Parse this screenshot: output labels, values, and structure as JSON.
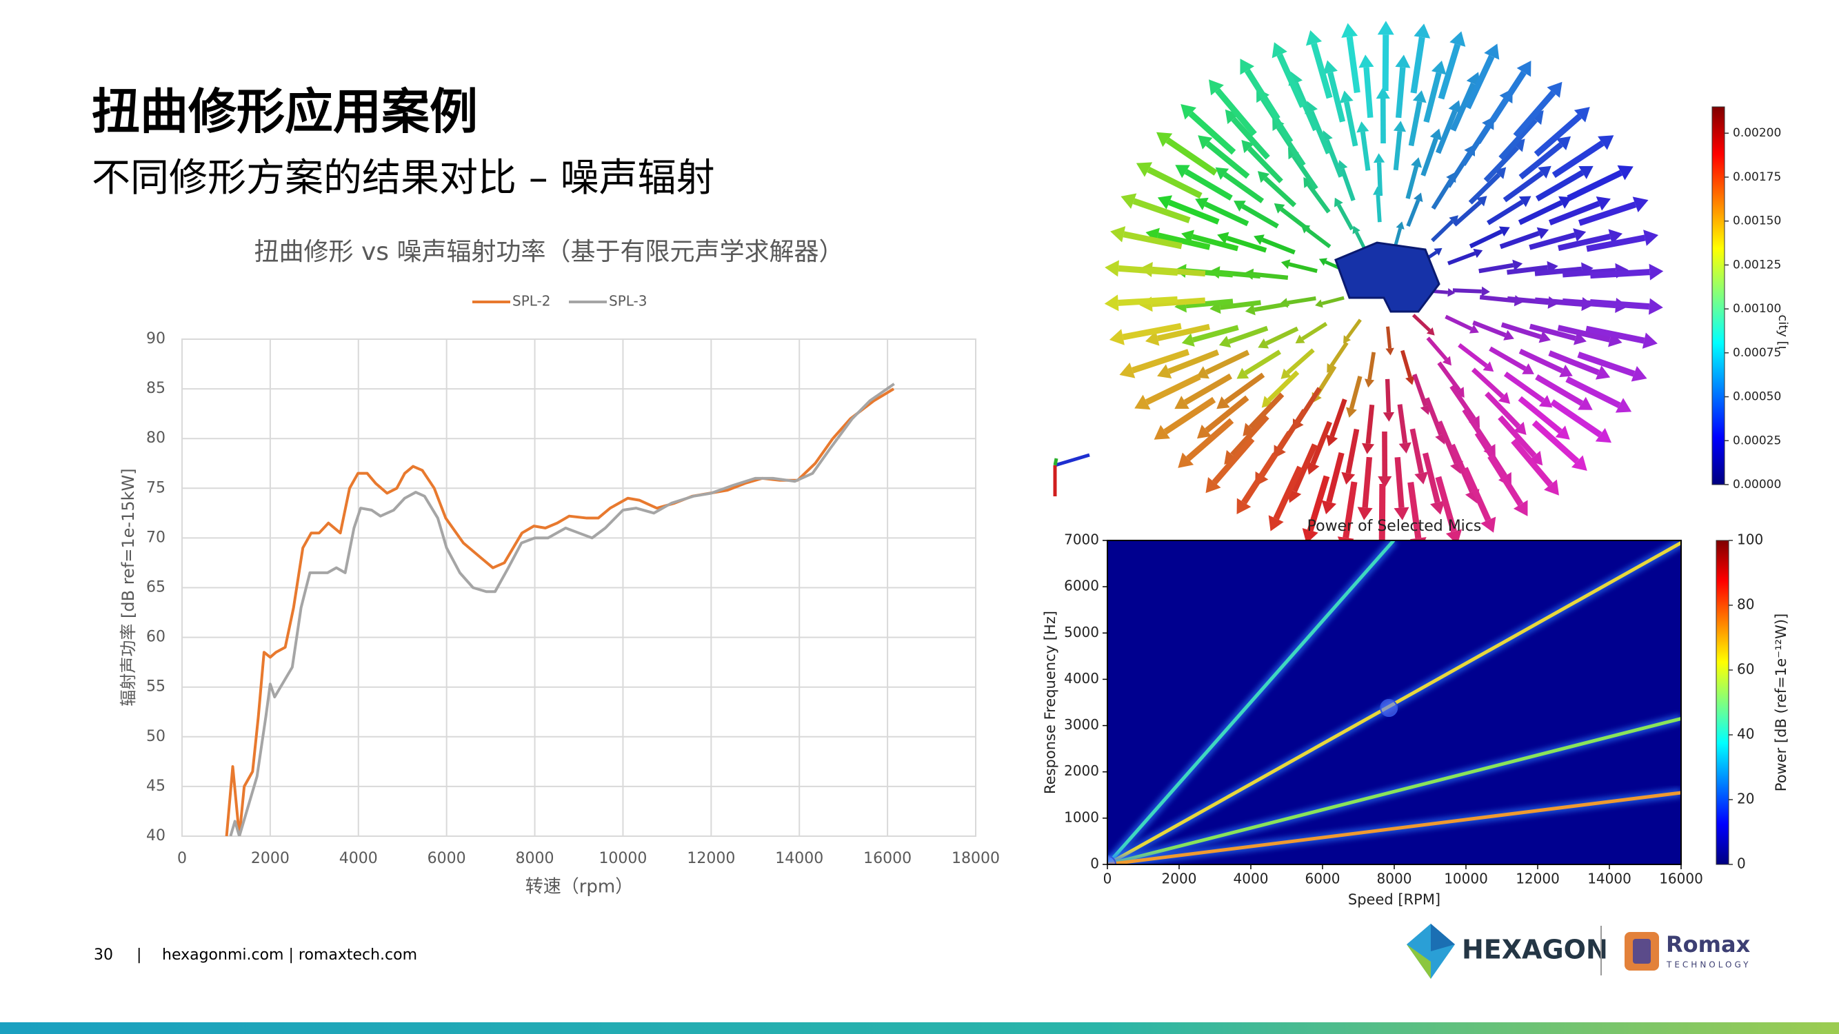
{
  "title": "扭曲修形应用案例",
  "subtitle": "不同修形方案的结果对比 – 噪声辐射",
  "footer": {
    "page": "30",
    "sep": "|",
    "links": "hexagonmi.com | romaxtech.com"
  },
  "logos": {
    "hexagon": "HEXAGON",
    "romax": "Romax",
    "romax_sub": "TECHNOLOGY"
  },
  "chart_data": [
    {
      "type": "line",
      "title": "扭曲修形 vs 噪声辐射功率（基于有限元声学求解器）",
      "xlabel": "转速（rpm）",
      "ylabel": "辐射声功率 [dB ref=1e-15kW]",
      "xlim": [
        0,
        18000
      ],
      "xticks": [
        0,
        2000,
        4000,
        6000,
        8000,
        10000,
        12000,
        14000,
        16000,
        18000
      ],
      "ylim": [
        40,
        90
      ],
      "yticks": [
        40,
        45,
        50,
        55,
        60,
        65,
        70,
        75,
        80,
        85,
        90
      ],
      "grid": true,
      "legend": "top",
      "series": [
        {
          "name": "SPL-2",
          "color": "#e8792e",
          "x": [
            1010,
            1150,
            1300,
            1410,
            1600,
            1730,
            1860,
            2000,
            2130,
            2340,
            2530,
            2740,
            2930,
            3110,
            3320,
            3590,
            3800,
            3990,
            4200,
            4390,
            4650,
            4870,
            5050,
            5240,
            5450,
            5720,
            5980,
            6380,
            6780,
            7050,
            7310,
            7710,
            7980,
            8240,
            8510,
            8780,
            9180,
            9440,
            9710,
            10110,
            10370,
            10770,
            11170,
            11570,
            11970,
            12370,
            12770,
            13160,
            13560,
            13960,
            14360,
            14760,
            15160,
            15690,
            16140
          ],
          "values": [
            40,
            47,
            40,
            45,
            46.5,
            52,
            58.5,
            58,
            58.5,
            59,
            63,
            69,
            70.5,
            70.5,
            71.5,
            70.5,
            75,
            76.5,
            76.5,
            75.5,
            74.5,
            75,
            76.5,
            77.2,
            76.8,
            75,
            72,
            69.5,
            68,
            67,
            67.5,
            70.5,
            71.2,
            71,
            71.5,
            72.2,
            72,
            72,
            73,
            74,
            73.8,
            73,
            73.5,
            74.2,
            74.5,
            74.8,
            75.5,
            76,
            75.8,
            75.8,
            77.5,
            80,
            82,
            83.8,
            85
          ]
        },
        {
          "name": "SPL-3",
          "color": "#a5a5a5",
          "x": [
            1100,
            1200,
            1300,
            1500,
            1700,
            1900,
            2000,
            2100,
            2300,
            2500,
            2700,
            2900,
            3100,
            3300,
            3500,
            3700,
            3900,
            4050,
            4300,
            4500,
            4800,
            5050,
            5300,
            5500,
            5800,
            6000,
            6300,
            6600,
            6900,
            7100,
            7400,
            7700,
            8000,
            8300,
            8700,
            9000,
            9300,
            9600,
            10000,
            10300,
            10700,
            11100,
            11600,
            12000,
            12500,
            13000,
            13400,
            13900,
            14300,
            14700,
            15200,
            15600,
            16150
          ],
          "values": [
            40,
            41.5,
            40,
            43,
            46,
            52,
            55.3,
            54,
            55.5,
            57,
            63,
            66.5,
            66.5,
            66.5,
            67,
            66.5,
            71,
            73,
            72.8,
            72.2,
            72.8,
            74,
            74.6,
            74.2,
            72,
            69,
            66.5,
            65,
            64.6,
            64.6,
            67,
            69.5,
            70,
            70,
            71,
            70.5,
            70,
            71,
            72.8,
            73,
            72.5,
            73.5,
            74.2,
            74.5,
            75.3,
            76,
            76,
            75.7,
            76.5,
            79,
            82,
            83.8,
            85.5
          ]
        }
      ]
    },
    {
      "type": "colorbar",
      "label": "Velocity [m/s]",
      "ylim": [
        0,
        0.00215
      ],
      "yticks": [
        {
          "value": 0,
          "label": "0.00000"
        },
        {
          "value": 0.00025,
          "label": "0.00025"
        },
        {
          "value": 0.0005,
          "label": "0.00050"
        },
        {
          "value": 0.00075,
          "label": "0.00075"
        },
        {
          "value": 0.001,
          "label": "0.00100"
        },
        {
          "value": 0.00125,
          "label": "0.00125"
        },
        {
          "value": 0.0015,
          "label": "0.00150"
        },
        {
          "value": 0.00175,
          "label": "0.00175"
        },
        {
          "value": 0.002,
          "label": "0.00200"
        }
      ]
    },
    {
      "type": "spectrogram",
      "title": "Power of Selected Mics",
      "xlabel": "Speed [RPM]",
      "ylabel": "Response Frequency [Hz]",
      "xlim": [
        0,
        16000
      ],
      "xticks": [
        0,
        2000,
        4000,
        6000,
        8000,
        10000,
        12000,
        14000,
        16000
      ],
      "ylim": [
        0,
        7000
      ],
      "yticks": [
        0,
        1000,
        2000,
        3000,
        4000,
        5000,
        6000,
        7000
      ],
      "background": "#00008f",
      "colorbar_label": "Power [dB (ref=1e⁻¹²W)]",
      "clim": [
        0,
        100
      ],
      "cticks": [
        0,
        20,
        40,
        60,
        80,
        100
      ],
      "series": [
        {
          "color": "#3fd8c0",
          "x": [
            0,
            7985
          ],
          "values": [
            0,
            7000
          ]
        },
        {
          "color": "#e8d83c",
          "x": [
            0,
            16000
          ],
          "values": [
            0,
            6950
          ]
        },
        {
          "color": "#8ae45a",
          "x": [
            0,
            16000
          ],
          "values": [
            0,
            3150
          ]
        },
        {
          "color": "#f09a30",
          "x": [
            0,
            16000
          ],
          "values": [
            0,
            1550
          ]
        }
      ],
      "points": {
        "x": [
          0,
          7850
        ],
        "values": [
          0,
          3380
        ]
      }
    }
  ]
}
